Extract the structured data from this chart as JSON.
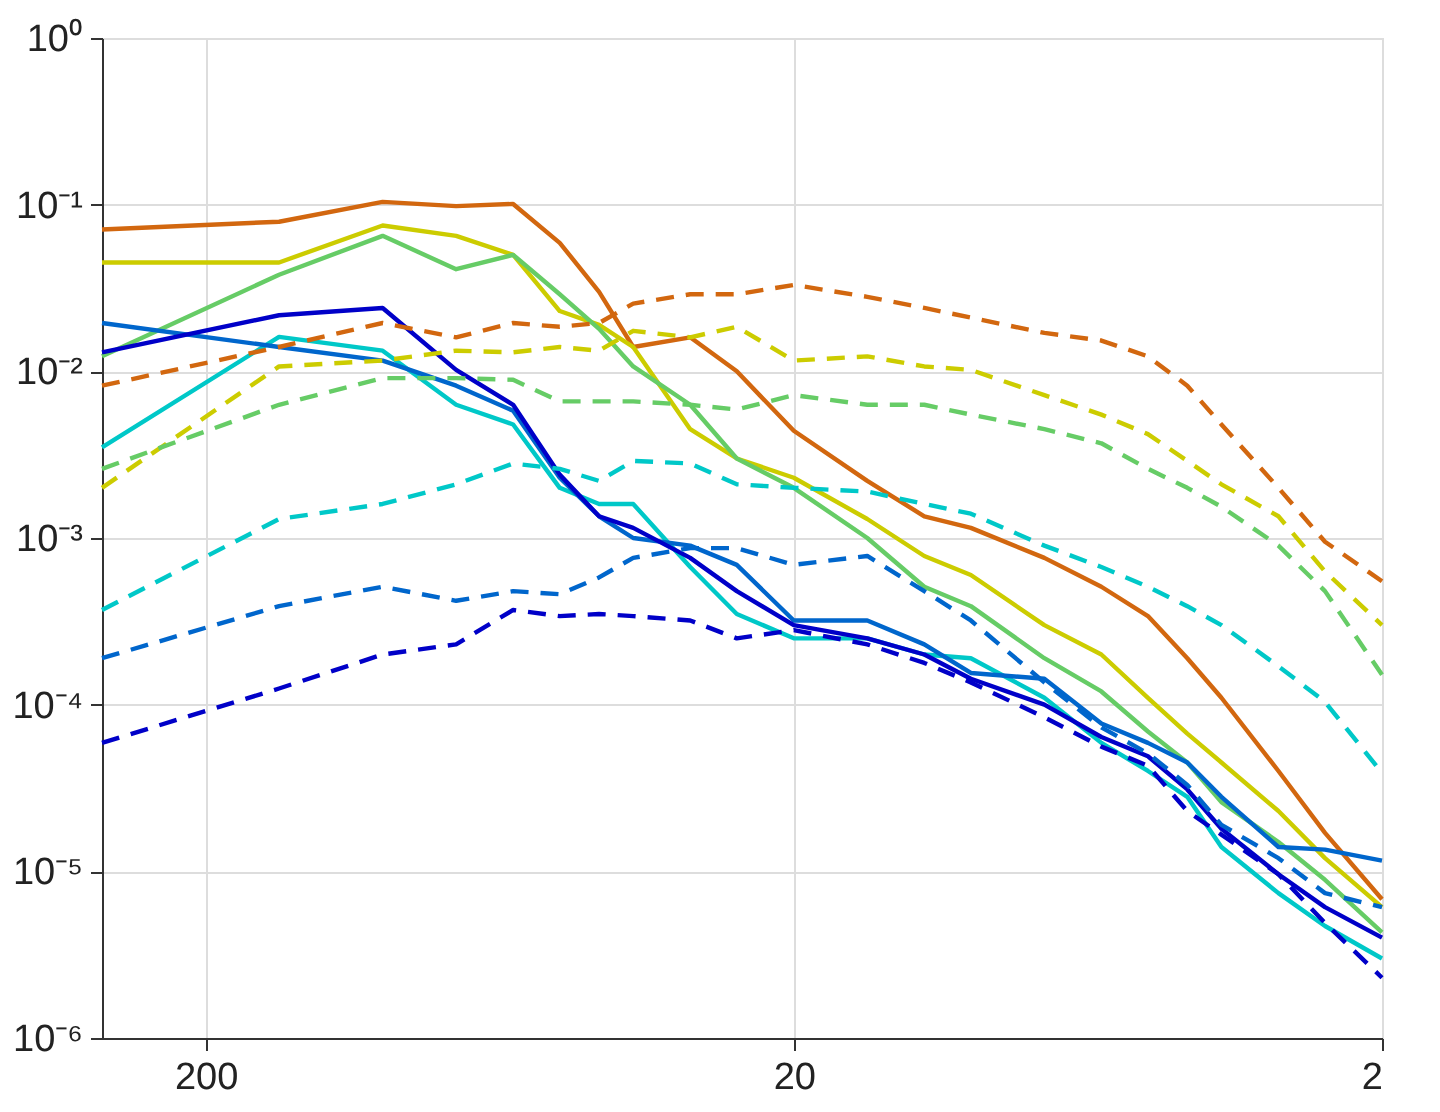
{
  "chart_data": {
    "type": "line",
    "log": "xy",
    "grid": true,
    "legend": false,
    "marker": "none",
    "x": [
      300,
      150,
      100,
      75,
      60,
      50,
      42.86,
      37.5,
      30,
      25,
      20,
      15,
      12,
      10,
      7.5,
      6,
      5,
      4.286,
      3.75,
      3,
      2.5,
      2
    ],
    "xlim": [
      300,
      2
    ],
    "xticks": [
      200,
      20,
      2
    ],
    "ylim": [
      1e-06,
      1
    ],
    "yticks": [
      {
        "value": 1,
        "label": "10⁰"
      },
      {
        "value": 0.1,
        "label": "10⁻¹"
      },
      {
        "value": 0.01,
        "label": "10⁻²"
      },
      {
        "value": 0.001,
        "label": "10⁻³"
      },
      {
        "value": 0.0001,
        "label": "10⁻⁴"
      },
      {
        "value": 1e-05,
        "label": "10⁻⁵"
      },
      {
        "value": 1e-06,
        "label": "10⁻⁶"
      }
    ],
    "series": [
      {
        "color": "#d2670f",
        "line_style": "solid",
        "values": [
          0.071,
          0.079,
          0.104,
          0.098,
          0.101,
          0.059,
          0.03,
          0.014,
          0.016,
          0.01,
          0.0044,
          0.0022,
          0.00135,
          0.00115,
          0.00076,
          0.00051,
          0.00034,
          0.00019,
          0.00011,
          4e-05,
          1.7e-05,
          6.8e-06
        ]
      },
      {
        "color": "#cccc00",
        "line_style": "solid",
        "values": [
          0.045,
          0.045,
          0.075,
          0.065,
          0.05,
          0.023,
          0.019,
          0.014,
          0.0045,
          0.003,
          0.0023,
          0.0013,
          0.00078,
          0.0006,
          0.0003,
          0.0002,
          0.00011,
          6.7e-05,
          4.5e-05,
          2.3e-05,
          1.2e-05,
          6.1e-06
        ]
      },
      {
        "color": "#66cc66",
        "line_style": "solid",
        "values": [
          0.0123,
          0.038,
          0.065,
          0.041,
          0.05,
          0.029,
          0.018,
          0.0107,
          0.0063,
          0.003,
          0.002,
          0.001,
          0.00051,
          0.00039,
          0.00019,
          0.00012,
          6.9e-05,
          4.5e-05,
          2.6e-05,
          1.5e-05,
          8.9e-06,
          4.3e-06
        ]
      },
      {
        "color": "#00c8c8",
        "line_style": "solid",
        "values": [
          0.0035,
          0.0161,
          0.0133,
          0.0063,
          0.0048,
          0.002,
          0.0016,
          0.0016,
          0.00067,
          0.00035,
          0.00025,
          0.00025,
          0.0002,
          0.00019,
          0.00011,
          5.9e-05,
          4e-05,
          2.8e-05,
          1.4e-05,
          7.4e-06,
          4.7e-06,
          3e-06
        ]
      },
      {
        "color": "#0066cc",
        "line_style": "solid",
        "values": [
          0.0195,
          0.014,
          0.0116,
          0.0082,
          0.0058,
          0.0023,
          0.00135,
          0.001,
          0.0009,
          0.00069,
          0.00032,
          0.00032,
          0.00023,
          0.000155,
          0.000143,
          7.7e-05,
          5.9e-05,
          4.5e-05,
          2.8e-05,
          1.4e-05,
          1.35e-05,
          1.16e-05
        ]
      },
      {
        "color": "#0000c8",
        "line_style": "solid",
        "values": [
          0.013,
          0.0217,
          0.024,
          0.0102,
          0.0063,
          0.0024,
          0.00135,
          0.00115,
          0.00076,
          0.00048,
          0.0003,
          0.00025,
          0.0002,
          0.000143,
          0.0001,
          6.4e-05,
          4.9e-05,
          3.1e-05,
          1.8e-05,
          9.6e-06,
          6.1e-06,
          4e-06
        ]
      },
      {
        "color": "#d2670f",
        "line_style": "dashed",
        "values": [
          0.0082,
          0.014,
          0.0195,
          0.016,
          0.0195,
          0.0185,
          0.0195,
          0.0255,
          0.029,
          0.029,
          0.033,
          0.028,
          0.024,
          0.021,
          0.017,
          0.0153,
          0.0123,
          0.0082,
          0.0048,
          0.002,
          0.00095,
          0.00055
        ]
      },
      {
        "color": "#cccc00",
        "line_style": "dashed",
        "values": [
          0.002,
          0.0107,
          0.0116,
          0.0133,
          0.013,
          0.014,
          0.0133,
          0.0175,
          0.016,
          0.0185,
          0.0116,
          0.0123,
          0.0107,
          0.0102,
          0.0072,
          0.0055,
          0.0042,
          0.0029,
          0.0021,
          0.00135,
          0.00063,
          0.0003
        ]
      },
      {
        "color": "#66cc66",
        "line_style": "dashed",
        "values": [
          0.0026,
          0.0063,
          0.0091,
          0.0091,
          0.0089,
          0.0066,
          0.0066,
          0.0066,
          0.0063,
          0.0059,
          0.0072,
          0.0063,
          0.0063,
          0.0055,
          0.0045,
          0.0037,
          0.0026,
          0.002,
          0.00154,
          0.0009,
          0.00048,
          0.000151
        ]
      },
      {
        "color": "#00c8c8",
        "line_style": "dashed",
        "values": [
          0.00037,
          0.0013,
          0.0016,
          0.0021,
          0.0028,
          0.0026,
          0.0022,
          0.0029,
          0.0028,
          0.0021,
          0.002,
          0.0019,
          0.0016,
          0.0014,
          0.0009,
          0.00067,
          0.00051,
          0.00039,
          0.0003,
          0.00017,
          0.000104,
          3.9e-05
        ]
      },
      {
        "color": "#0066cc",
        "line_style": "dashed",
        "values": [
          0.00019,
          0.00039,
          0.00051,
          0.00042,
          0.00048,
          0.00046,
          0.00058,
          0.00076,
          0.00087,
          0.00087,
          0.00069,
          0.00078,
          0.00048,
          0.00032,
          0.000136,
          7.3e-05,
          5.1e-05,
          3.3e-05,
          1.9e-05,
          1.2e-05,
          7.4e-06,
          6.1e-06
        ]
      },
      {
        "color": "#0000c8",
        "line_style": "dashed",
        "values": [
          5.9e-05,
          0.000125,
          0.0002,
          0.00023,
          0.00037,
          0.00034,
          0.00035,
          0.00034,
          0.00032,
          0.00025,
          0.00028,
          0.00023,
          0.000178,
          0.000136,
          8.4e-05,
          5.6e-05,
          4.3e-05,
          2.3e-05,
          1.66e-05,
          9.6e-06,
          4.9e-06,
          2.3e-06
        ]
      }
    ]
  }
}
